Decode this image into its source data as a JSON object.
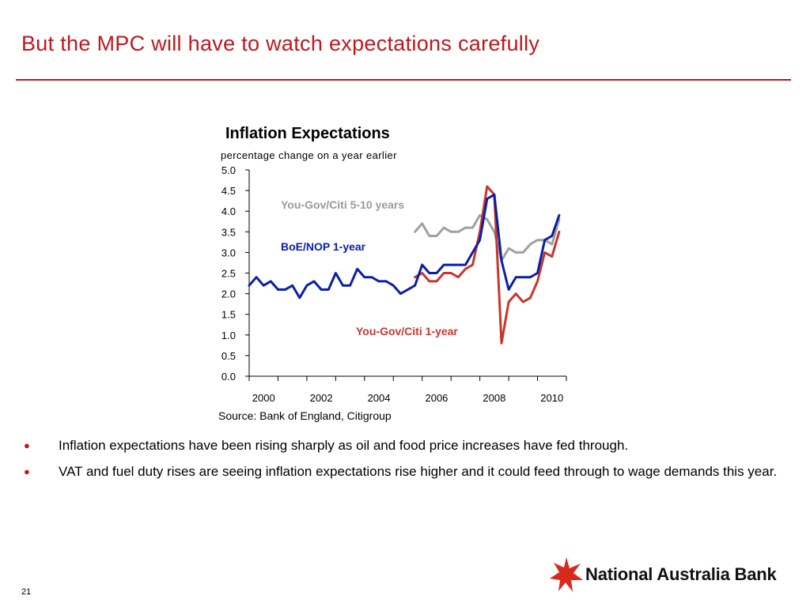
{
  "slide": {
    "title": "But the MPC will have to watch expectations carefully",
    "page_number": "21",
    "brand": "National Australia Bank",
    "accent_color": "#c0171c"
  },
  "bullets": [
    "Inflation expectations have been rising sharply as oil and food price increases have fed through.",
    "VAT and fuel duty rises are seeing inflation expectations rise higher and it could feed through to wage demands this year."
  ],
  "chart_data": {
    "type": "line",
    "title": "Inflation Expectations",
    "subtitle": "percentage change on a year earlier",
    "source": "Source: Bank of England, Citigroup",
    "ylim": [
      0,
      5
    ],
    "y_ticks": [
      "0.0",
      "0.5",
      "1.0",
      "1.5",
      "2.0",
      "2.5",
      "3.0",
      "3.5",
      "4.0",
      "4.5",
      "5.0"
    ],
    "xlim": [
      2000,
      2011
    ],
    "x_ticks": [
      "2000",
      "2002",
      "2004",
      "2006",
      "2008",
      "2010"
    ],
    "grid": false,
    "series": [
      {
        "name": "BoE/NOP 1-year",
        "color": "#0b1ea8",
        "x": [
          2000.0,
          2000.25,
          2000.5,
          2000.75,
          2001.0,
          2001.25,
          2001.5,
          2001.75,
          2002.0,
          2002.25,
          2002.5,
          2002.75,
          2003.0,
          2003.25,
          2003.5,
          2003.75,
          2004.0,
          2004.25,
          2004.5,
          2004.75,
          2005.0,
          2005.25,
          2005.5,
          2005.75,
          2006.0,
          2006.25,
          2006.5,
          2006.75,
          2007.0,
          2007.25,
          2007.5,
          2007.75,
          2008.0,
          2008.25,
          2008.5,
          2008.75,
          2009.0,
          2009.25,
          2009.5,
          2009.75,
          2010.0,
          2010.25,
          2010.5,
          2010.75
        ],
        "values": [
          2.2,
          2.4,
          2.2,
          2.3,
          2.1,
          2.1,
          2.2,
          1.9,
          2.2,
          2.3,
          2.1,
          2.1,
          2.5,
          2.2,
          2.2,
          2.6,
          2.4,
          2.4,
          2.3,
          2.3,
          2.2,
          2.0,
          2.1,
          2.2,
          2.7,
          2.5,
          2.5,
          2.7,
          2.7,
          2.7,
          2.7,
          3.0,
          3.3,
          4.3,
          4.4,
          2.8,
          2.1,
          2.4,
          2.4,
          2.4,
          2.5,
          3.3,
          3.4,
          3.9
        ]
      },
      {
        "name": "You-Gov/Citi 1-year",
        "color": "#c8372d",
        "x": [
          2005.75,
          2006.0,
          2006.25,
          2006.5,
          2006.75,
          2007.0,
          2007.25,
          2007.5,
          2007.75,
          2008.0,
          2008.25,
          2008.5,
          2008.75,
          2009.0,
          2009.25,
          2009.5,
          2009.75,
          2010.0,
          2010.25,
          2010.5,
          2010.75
        ],
        "values": [
          2.4,
          2.5,
          2.3,
          2.3,
          2.5,
          2.5,
          2.4,
          2.6,
          2.7,
          3.5,
          4.6,
          4.4,
          0.8,
          1.8,
          2.0,
          1.8,
          1.9,
          2.3,
          3.0,
          2.9,
          3.5
        ]
      },
      {
        "name": "You-Gov/Citi 5-10 years",
        "color": "#a0a0a0",
        "x": [
          2005.75,
          2006.0,
          2006.25,
          2006.5,
          2006.75,
          2007.0,
          2007.25,
          2007.5,
          2007.75,
          2008.0,
          2008.25,
          2008.5,
          2008.75,
          2009.0,
          2009.25,
          2009.5,
          2009.75,
          2010.0,
          2010.25,
          2010.5,
          2010.75
        ],
        "values": [
          3.5,
          3.7,
          3.4,
          3.4,
          3.6,
          3.5,
          3.5,
          3.6,
          3.6,
          3.9,
          3.8,
          3.5,
          2.8,
          3.1,
          3.0,
          3.0,
          3.2,
          3.3,
          3.3,
          3.2,
          3.8
        ]
      }
    ]
  }
}
